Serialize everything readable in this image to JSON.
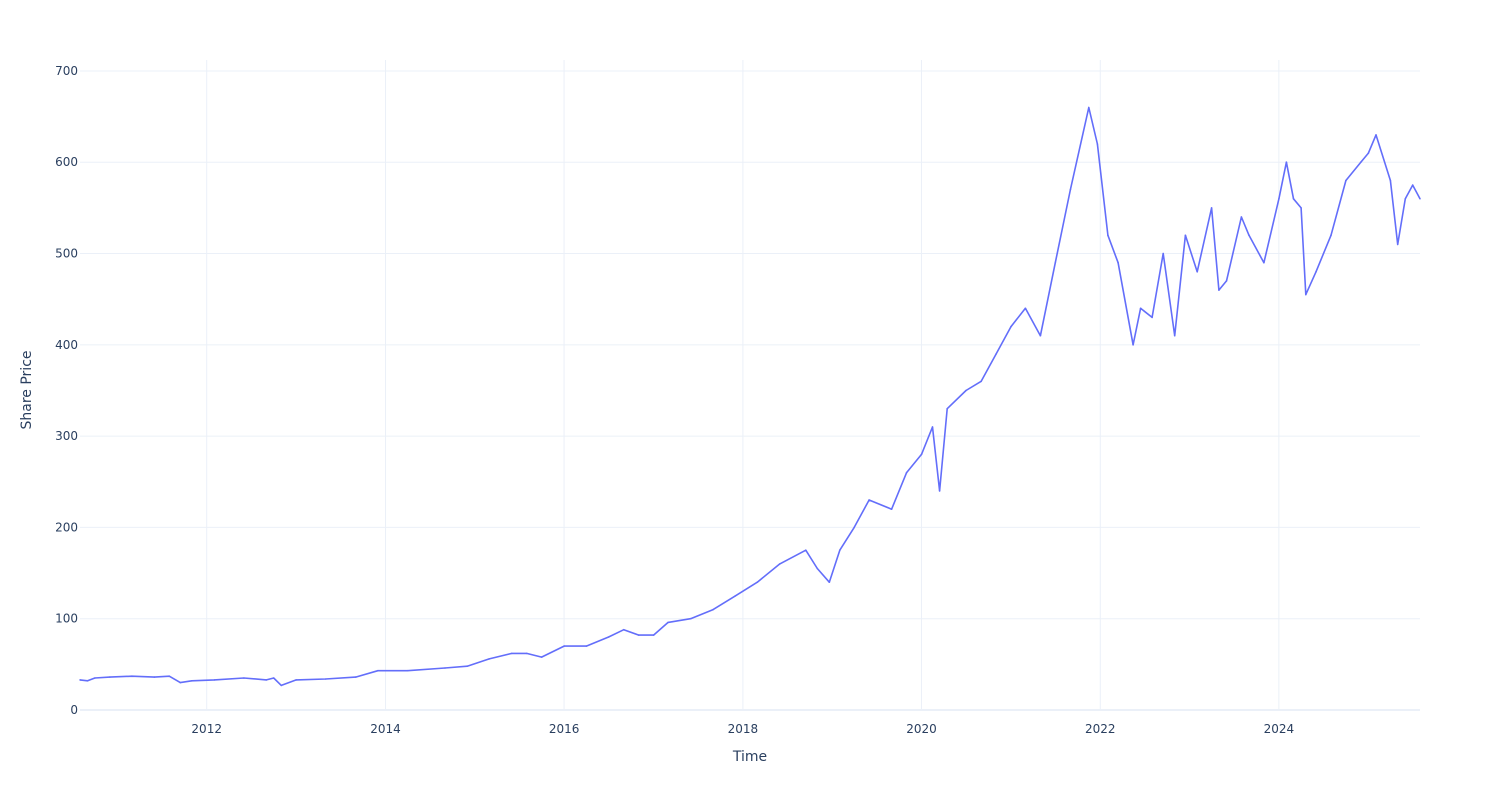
{
  "chart_data": {
    "type": "line",
    "title": "",
    "xlabel": "Time",
    "ylabel": "Share Price",
    "x_ticks": [
      "2012",
      "2014",
      "2016",
      "2018",
      "2020",
      "2022",
      "2024"
    ],
    "y_ticks": [
      0,
      100,
      200,
      300,
      400,
      500,
      600,
      700
    ],
    "xlim": [
      "2010-08-01",
      "2025-07-31"
    ],
    "ylim": [
      0,
      712
    ],
    "grid": true,
    "legend": "none",
    "series": [
      {
        "color": "#636efa",
        "x": [
          "2010-08-01",
          "2010-09-01",
          "2010-10-01",
          "2010-12-01",
          "2011-03-01",
          "2011-06-01",
          "2011-08-01",
          "2011-09-15",
          "2011-11-01",
          "2012-02-01",
          "2012-06-01",
          "2012-09-01",
          "2012-10-01",
          "2012-11-01",
          "2013-01-01",
          "2013-05-01",
          "2013-09-01",
          "2013-12-01",
          "2014-04-01",
          "2014-09-01",
          "2014-12-01",
          "2015-03-01",
          "2015-06-01",
          "2015-08-01",
          "2015-10-01",
          "2016-01-01",
          "2016-04-01",
          "2016-07-01",
          "2016-09-01",
          "2016-11-01",
          "2017-01-01",
          "2017-03-01",
          "2017-06-01",
          "2017-09-01",
          "2017-12-01",
          "2018-03-01",
          "2018-06-01",
          "2018-09-15",
          "2018-11-01",
          "2018-12-20",
          "2019-02-01",
          "2019-04-01",
          "2019-06-01",
          "2019-09-01",
          "2019-11-01",
          "2020-01-01",
          "2020-02-15",
          "2020-03-15",
          "2020-04-15",
          "2020-07-01",
          "2020-09-01",
          "2020-11-01",
          "2021-01-01",
          "2021-03-01",
          "2021-05-01",
          "2021-07-01",
          "2021-09-01",
          "2021-11-15",
          "2021-12-20",
          "2022-02-01",
          "2022-03-15",
          "2022-05-15",
          "2022-06-15",
          "2022-08-01",
          "2022-09-15",
          "2022-11-01",
          "2022-12-15",
          "2023-02-01",
          "2023-04-01",
          "2023-05-01",
          "2023-06-01",
          "2023-08-01",
          "2023-09-01",
          "2023-11-01",
          "2024-01-01",
          "2024-02-01",
          "2024-03-01",
          "2024-04-01",
          "2024-04-20",
          "2024-06-01",
          "2024-08-01",
          "2024-10-01",
          "2024-12-01",
          "2025-01-01",
          "2025-02-01",
          "2025-04-01",
          "2025-05-01",
          "2025-06-01",
          "2025-07-01",
          "2025-07-31"
        ],
        "y": [
          33,
          32,
          35,
          36,
          37,
          36,
          37,
          30,
          32,
          33,
          35,
          33,
          35,
          27,
          33,
          34,
          36,
          43,
          43,
          46,
          48,
          56,
          62,
          62,
          58,
          70,
          70,
          80,
          88,
          82,
          82,
          96,
          100,
          110,
          125,
          140,
          160,
          175,
          155,
          140,
          175,
          200,
          230,
          220,
          260,
          280,
          310,
          240,
          330,
          350,
          360,
          390,
          420,
          440,
          410,
          490,
          570,
          660,
          620,
          520,
          490,
          400,
          440,
          430,
          500,
          410,
          520,
          480,
          550,
          460,
          470,
          540,
          520,
          490,
          560,
          600,
          560,
          550,
          455,
          480,
          520,
          580,
          600,
          610,
          630,
          580,
          510,
          560,
          575,
          560
        ]
      }
    ]
  }
}
